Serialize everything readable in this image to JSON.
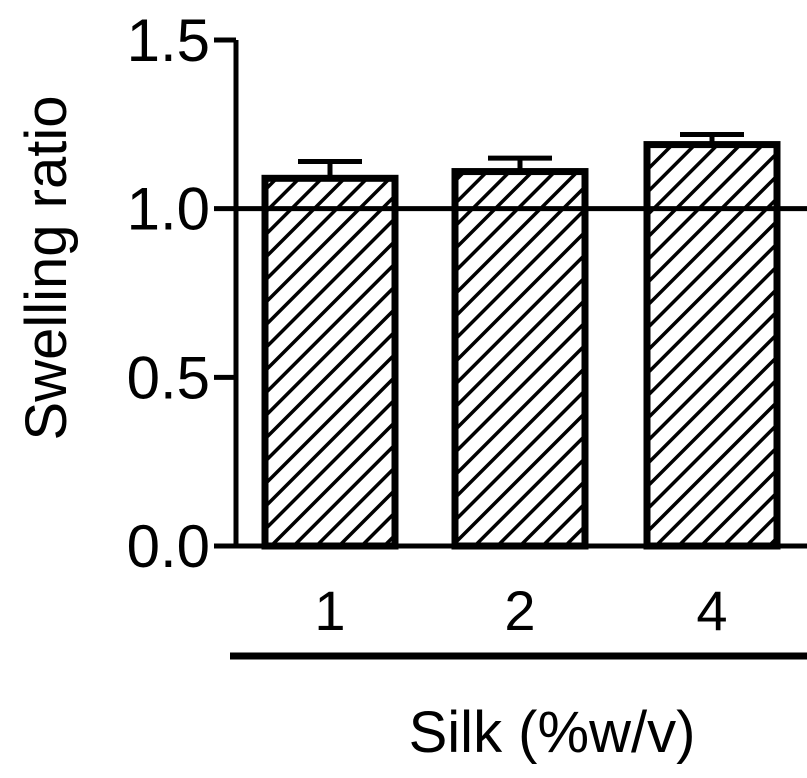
{
  "chart_data": {
    "type": "bar",
    "categories": [
      "1",
      "2",
      "4"
    ],
    "series": [
      {
        "values": [
          1.09,
          1.11,
          1.19
        ],
        "error": [
          0.05,
          0.04,
          0.03
        ]
      }
    ],
    "reference_line": 1.0,
    "ylim": [
      0,
      1.5
    ],
    "yticks": [
      "0.0",
      "0.5",
      "1.0",
      "1.5"
    ],
    "xlabel": "Silk (%w/v)",
    "ylabel": "Swelling ratio",
    "bar_fill": "hatched",
    "grid": false,
    "legend": false,
    "colors": {
      "bar_edge": "#000000",
      "hatch": "#000000",
      "background": "#ffffff"
    }
  }
}
